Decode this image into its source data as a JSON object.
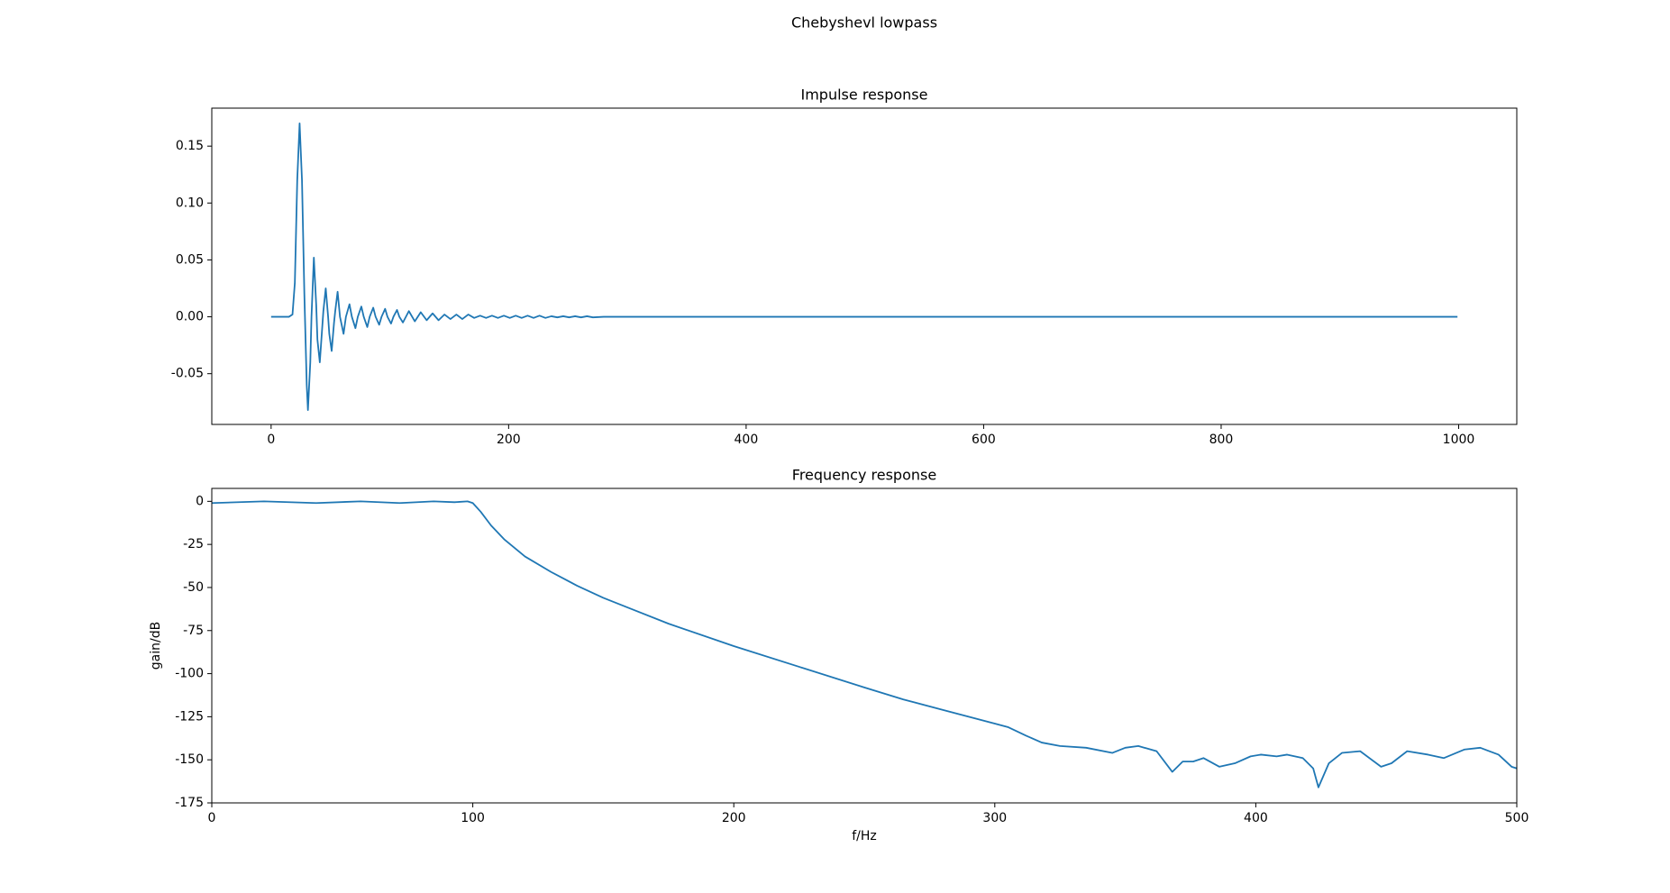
{
  "title": "Chebyshevl lowpass",
  "chart_data": [
    {
      "type": "line",
      "title": "Impulse response",
      "series": [
        {
          "color": "#1f77b4",
          "x": [
            0,
            15,
            18,
            20,
            22,
            24,
            26,
            28,
            30,
            31,
            33,
            34,
            36,
            38,
            39,
            41,
            43,
            44,
            46,
            48,
            49,
            51,
            53,
            54,
            56,
            58,
            61,
            63,
            66,
            68,
            71,
            73,
            76,
            78,
            81,
            83,
            86,
            88,
            91,
            93,
            96,
            98,
            101,
            103,
            106,
            108,
            111,
            116,
            121,
            126,
            131,
            136,
            141,
            146,
            151,
            156,
            161,
            166,
            171,
            176,
            181,
            186,
            191,
            196,
            201,
            206,
            211,
            216,
            221,
            226,
            231,
            236,
            241,
            246,
            251,
            256,
            261,
            266,
            271,
            280,
            300,
            999
          ],
          "values": [
            0,
            0,
            0.002,
            0.03,
            0.12,
            0.17,
            0.12,
            0.02,
            -0.06,
            -0.082,
            -0.04,
            0,
            0.052,
            0.01,
            -0.02,
            -0.04,
            -0.01,
            0.005,
            0.025,
            0,
            -0.015,
            -0.03,
            -0.005,
            0.005,
            0.022,
            0,
            -0.015,
            0,
            0.011,
            0,
            -0.01,
            0,
            0.009,
            0,
            -0.009,
            0,
            0.008,
            0,
            -0.007,
            0,
            0.007,
            0,
            -0.006,
            0,
            0.006,
            0,
            -0.005,
            0.005,
            -0.004,
            0.004,
            -0.003,
            0.003,
            -0.003,
            0.002,
            -0.002,
            0.002,
            -0.002,
            0.002,
            -0.001,
            0.001,
            -0.001,
            0.001,
            -0.001,
            0.001,
            -0.001,
            0.001,
            -0.001,
            0.001,
            -0.001,
            0.001,
            -0.001,
            0.0005,
            -0.0005,
            0.0005,
            -0.0005,
            0.0005,
            -0.0005,
            0.0005,
            -0.0005,
            0,
            0,
            0
          ]
        }
      ],
      "xlim": [
        -49.95,
        1048.95
      ],
      "xticks": [
        0,
        200,
        400,
        600,
        800,
        1000
      ],
      "ylim": [
        -0.0946,
        0.1834
      ],
      "yticks": [
        -0.05,
        {
          "value": 0,
          "label": "0.00"
        },
        0.05,
        {
          "value": 0.1,
          "label": "0.10"
        },
        0.15
      ]
    },
    {
      "type": "line",
      "title": "Frequency response",
      "xlabel": "f/Hz",
      "ylabel": "gain/dB",
      "series": [
        {
          "color": "#1f77b4",
          "x": [
            0,
            20,
            40,
            57,
            72,
            85,
            93,
            98,
            100,
            103,
            107,
            112,
            120,
            130,
            140,
            150,
            160,
            175,
            200,
            225,
            250,
            265,
            280,
            300,
            305,
            312,
            318,
            325,
            335,
            345,
            350,
            355,
            362,
            368,
            372,
            376,
            380,
            386,
            392,
            398,
            402,
            408,
            412,
            418,
            422,
            424,
            428,
            433,
            440,
            448,
            452,
            458,
            466,
            472,
            480,
            486,
            493,
            498,
            500
          ],
          "values": [
            -1,
            0,
            -1,
            0,
            -1,
            0,
            -0.5,
            0,
            -1,
            -6,
            -14,
            -22,
            -32,
            -41,
            -49,
            -56,
            -62,
            -71,
            -84,
            -96,
            -108,
            -115,
            -121,
            -129,
            -131,
            -136,
            -140,
            -142,
            -143,
            -146,
            -143,
            -142,
            -145,
            -157,
            -151,
            -151,
            -149,
            -154,
            -152,
            -148,
            -147,
            -148,
            -147,
            -149,
            -155,
            -166,
            -152,
            -146,
            -145,
            -154,
            -152,
            -145,
            -147,
            -149,
            -144,
            -143,
            -147,
            -154,
            -155
          ]
        }
      ],
      "xlim": [
        0,
        500
      ],
      "xticks": [
        0,
        100,
        200,
        300,
        400,
        500
      ],
      "ylim": [
        -175,
        7.5
      ],
      "yticks": [
        -175,
        -150,
        -125,
        -100,
        -75,
        -50,
        -25,
        0
      ]
    }
  ]
}
